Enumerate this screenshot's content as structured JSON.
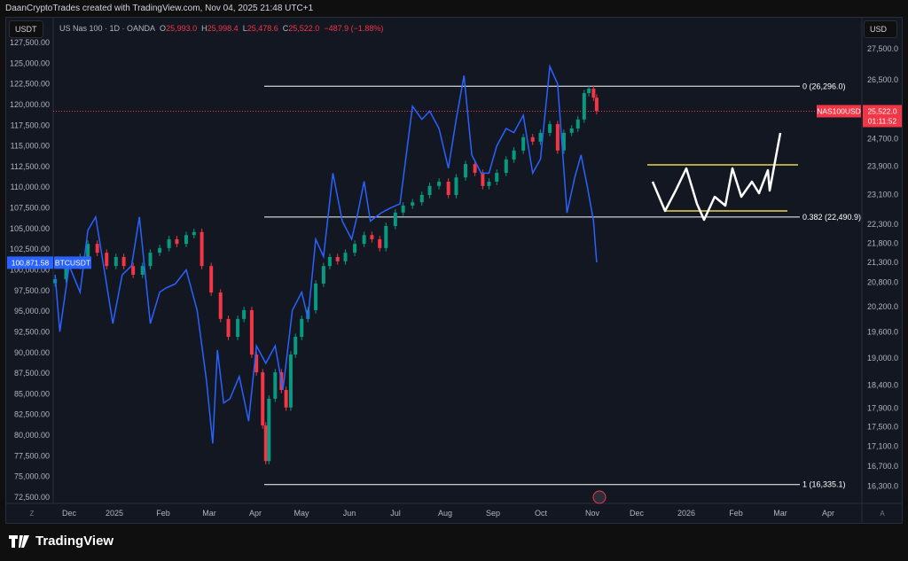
{
  "caption": "DaanCryptoTrades created with TradingView.com, Nov 04, 2025 21:48 UTC+1",
  "left_unit": "USDT",
  "right_unit": "USD",
  "legend": {
    "symbol": "US Nas 100 · 1D · OANDA",
    "o_label": "O",
    "o": "25,993.0",
    "h_label": "H",
    "h": "25,998.4",
    "l_label": "L",
    "l": "25,478.6",
    "c_label": "C",
    "c": "25,522.0",
    "change": "−487.9 (−1.88%)"
  },
  "left_ticks": [
    "127,500.00",
    "125,000.00",
    "122,500.00",
    "120,000.00",
    "117,500.00",
    "115,000.00",
    "112,500.00",
    "110,000.00",
    "107,500.00",
    "105,000.00",
    "102,500.00",
    "100,000.00",
    "97,500.00",
    "95,000.00",
    "92,500.00",
    "90,000.00",
    "87,500.00",
    "85,000.00",
    "82,500.00",
    "80,000.00",
    "77,500.00",
    "75,000.00",
    "72,500.00"
  ],
  "right_ticks": [
    "27,500.0",
    "26,500.0",
    "24,700.0",
    "23,900.0",
    "23,100.0",
    "22,300.0",
    "21,800.0",
    "21,300.0",
    "20,800.0",
    "20,200.0",
    "19,600.0",
    "19,000.0",
    "18,400.0",
    "17,900.0",
    "17,500.0",
    "17,100.0",
    "16,700.0",
    "16,300.0"
  ],
  "x_ticks": [
    "Dec",
    "2025",
    "Feb",
    "Mar",
    "Apr",
    "May",
    "Jun",
    "Jul",
    "Aug",
    "Sep",
    "Oct",
    "Nov",
    "Dec",
    "2026",
    "Feb",
    "Mar",
    "Apr"
  ],
  "btc_label": {
    "price": "100,871.58",
    "symbol": "BTCUSDT"
  },
  "nas_label": {
    "symbol": "NAS100USD",
    "price": "25,522.0",
    "countdown": "01:11:52"
  },
  "fib": [
    {
      "text": "0 (26,296.0)",
      "value": 26296.0
    },
    {
      "text": "0.382 (22,490.9)",
      "value": 22490.9
    },
    {
      "text": "1 (16,335.1)",
      "value": 16335.1
    }
  ],
  "colors": {
    "btc": "#2962ff",
    "up": "#089981",
    "down": "#f23645",
    "fib": "#ffffff",
    "box": "#e8d44d"
  },
  "footer": "TradingView",
  "chart_data": {
    "type": "line",
    "x_unit": "days since 2024-12-01",
    "btc": [
      [
        -9,
        99400
      ],
      [
        -6,
        92500
      ],
      [
        0,
        100500
      ],
      [
        7,
        97300
      ],
      [
        12,
        104800
      ],
      [
        17,
        106400
      ],
      [
        23,
        99400
      ],
      [
        28,
        93500
      ],
      [
        34,
        99400
      ],
      [
        40,
        100500
      ],
      [
        45,
        106400
      ],
      [
        52,
        93500
      ],
      [
        58,
        97300
      ],
      [
        62,
        97800
      ],
      [
        68,
        98300
      ],
      [
        75,
        100000
      ],
      [
        82,
        95100
      ],
      [
        88,
        86600
      ],
      [
        92,
        79000
      ],
      [
        95,
        90300
      ],
      [
        99,
        83900
      ],
      [
        103,
        84400
      ],
      [
        109,
        87100
      ],
      [
        115,
        81700
      ],
      [
        120,
        90800
      ],
      [
        126,
        88700
      ],
      [
        132,
        90800
      ],
      [
        137,
        85500
      ],
      [
        143,
        95100
      ],
      [
        149,
        97300
      ],
      [
        153,
        94100
      ],
      [
        158,
        103700
      ],
      [
        163,
        101600
      ],
      [
        169,
        111700
      ],
      [
        175,
        105900
      ],
      [
        181,
        103700
      ],
      [
        185,
        106900
      ],
      [
        189,
        110700
      ],
      [
        193,
        105900
      ],
      [
        200,
        106900
      ],
      [
        206,
        107500
      ],
      [
        212,
        108000
      ],
      [
        220,
        119800
      ],
      [
        226,
        118200
      ],
      [
        231,
        119200
      ],
      [
        237,
        117100
      ],
      [
        243,
        112300
      ],
      [
        248,
        118200
      ],
      [
        253,
        123500
      ],
      [
        258,
        113900
      ],
      [
        264,
        111700
      ],
      [
        269,
        111700
      ],
      [
        274,
        115000
      ],
      [
        280,
        117100
      ],
      [
        285,
        116600
      ],
      [
        291,
        118700
      ],
      [
        297,
        111700
      ],
      [
        302,
        113400
      ],
      [
        308,
        124600
      ],
      [
        313,
        122500
      ],
      [
        319,
        106900
      ],
      [
        324,
        111200
      ],
      [
        328,
        113900
      ],
      [
        332,
        110100
      ],
      [
        336,
        105900
      ],
      [
        338,
        100900
      ]
    ],
    "nas": [
      [
        -9,
        20880
      ],
      [
        -2,
        21210
      ],
      [
        7,
        21440
      ],
      [
        12,
        21780
      ],
      [
        18,
        21550
      ],
      [
        24,
        21210
      ],
      [
        30,
        21440
      ],
      [
        35,
        21210
      ],
      [
        41,
        20990
      ],
      [
        47,
        21210
      ],
      [
        52,
        21550
      ],
      [
        58,
        21670
      ],
      [
        64,
        21900
      ],
      [
        69,
        21780
      ],
      [
        75,
        22010
      ],
      [
        80,
        22090
      ],
      [
        85,
        21210
      ],
      [
        91,
        20550
      ],
      [
        97,
        19910
      ],
      [
        102,
        19490
      ],
      [
        108,
        19910
      ],
      [
        112,
        20120
      ],
      [
        117,
        19080
      ],
      [
        120,
        18680
      ],
      [
        124,
        17530
      ],
      [
        126,
        16800
      ],
      [
        128,
        18100
      ],
      [
        132,
        18680
      ],
      [
        136,
        18290
      ],
      [
        139,
        17910
      ],
      [
        142,
        19080
      ],
      [
        145,
        19490
      ],
      [
        149,
        19910
      ],
      [
        153,
        20120
      ],
      [
        158,
        20770
      ],
      [
        163,
        21210
      ],
      [
        167,
        21440
      ],
      [
        172,
        21330
      ],
      [
        177,
        21550
      ],
      [
        183,
        21780
      ],
      [
        189,
        22010
      ],
      [
        194,
        21900
      ],
      [
        199,
        21670
      ],
      [
        203,
        22250
      ],
      [
        209,
        22610
      ],
      [
        214,
        22800
      ],
      [
        220,
        22890
      ],
      [
        226,
        23090
      ],
      [
        231,
        23340
      ],
      [
        237,
        23460
      ],
      [
        243,
        23090
      ],
      [
        248,
        23580
      ],
      [
        254,
        23960
      ],
      [
        260,
        23710
      ],
      [
        265,
        23340
      ],
      [
        269,
        23460
      ],
      [
        274,
        23710
      ],
      [
        280,
        24090
      ],
      [
        285,
        24350
      ],
      [
        291,
        24740
      ],
      [
        297,
        24610
      ],
      [
        302,
        24870
      ],
      [
        308,
        25130
      ],
      [
        313,
        24350
      ],
      [
        317,
        24870
      ],
      [
        322,
        25000
      ],
      [
        326,
        25270
      ],
      [
        330,
        26080
      ],
      [
        333,
        26220
      ],
      [
        336,
        25940
      ],
      [
        338,
        25522
      ]
    ]
  }
}
